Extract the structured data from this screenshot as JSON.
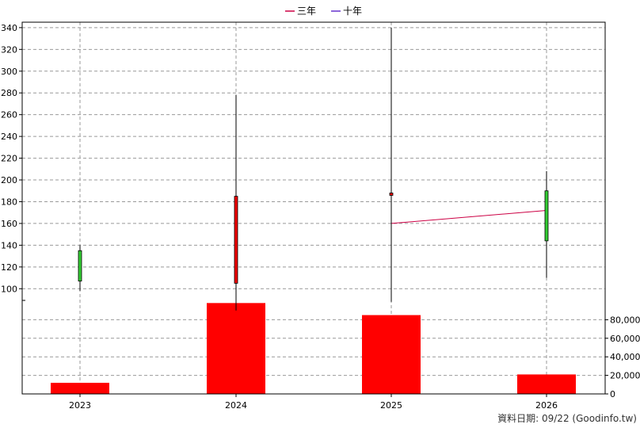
{
  "chart_data": {
    "type": "candlestick+bar",
    "x_categories": [
      "2023",
      "2024",
      "2025",
      "2026"
    ],
    "legend": [
      {
        "name": "三年",
        "color": "#cc0044"
      },
      {
        "name": "十年",
        "color": "#6633cc"
      }
    ],
    "price_axis": {
      "min": 90,
      "max": 345,
      "ticks": [
        100,
        120,
        140,
        160,
        180,
        200,
        220,
        240,
        260,
        280,
        300,
        320,
        340
      ]
    },
    "volume_axis": {
      "min": 0,
      "max": 100000,
      "ticks": [
        0,
        20000,
        40000,
        60000,
        80000
      ],
      "tick_labels": [
        "0",
        "20,000",
        "40,000",
        "60,000",
        "80,000"
      ]
    },
    "candles": [
      {
        "year": "2023",
        "open": 107,
        "close": 135,
        "high": 140,
        "low": 98,
        "color": "#33cc33"
      },
      {
        "year": "2024",
        "open": 185,
        "close": 105,
        "high": 278,
        "low": 80,
        "color": "#ee0000"
      },
      {
        "year": "2025",
        "open": 188,
        "close": 186,
        "high": 340,
        "low": 88,
        "color": "#ee0000"
      },
      {
        "year": "2026",
        "open": 144,
        "close": 190,
        "high": 208,
        "low": 110,
        "color": "#33cc33"
      }
    ],
    "volumes": [
      {
        "year": "2023",
        "value": 12000
      },
      {
        "year": "2024",
        "value": 98000
      },
      {
        "year": "2025",
        "value": 85000
      },
      {
        "year": "2026",
        "value": 21000
      }
    ],
    "avg_line_3y": [
      {
        "year": "2025",
        "value": 160
      },
      {
        "year": "2026",
        "value": 172
      }
    ],
    "grid": true
  },
  "footer": "資料日期: 09/22  (Goodinfo.tw)"
}
